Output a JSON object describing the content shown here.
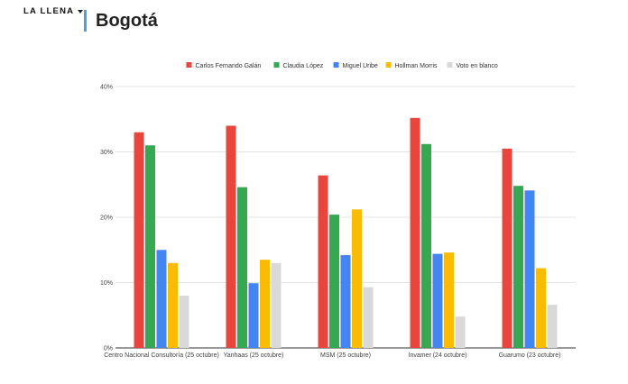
{
  "header": {
    "brand": "LA LLENA",
    "title": "Bogotá"
  },
  "chart_data": {
    "type": "bar",
    "title": "Bogotá",
    "categories": [
      "Centro Nacional Consultoría (25 octubre)",
      "Yanhaas (25 octubre)",
      "MSM (25 octubre)",
      "Invamer (24 octubre)",
      "Guarumo (23 octubre)"
    ],
    "series": [
      {
        "name": "Carlos Fernando Galán",
        "color": "#e8453c",
        "values": [
          33.0,
          34.0,
          26.4,
          35.2,
          30.5
        ]
      },
      {
        "name": "Claudia López",
        "color": "#36a852",
        "values": [
          31.0,
          24.6,
          20.4,
          31.2,
          24.8
        ]
      },
      {
        "name": "Miguel Uribe",
        "color": "#4485f4",
        "values": [
          15.0,
          9.9,
          14.2,
          14.4,
          24.1
        ]
      },
      {
        "name": "Hollman Morris",
        "color": "#fabb05",
        "values": [
          13.0,
          13.5,
          21.2,
          14.6,
          12.2
        ]
      },
      {
        "name": "Voto en blanco",
        "color": "#d9d9d9",
        "values": [
          8.0,
          13.0,
          9.3,
          4.8,
          6.6
        ]
      }
    ],
    "yticks": [
      "0%",
      "10%",
      "20%",
      "30%",
      "40%"
    ],
    "ylim": [
      0,
      40
    ],
    "xlabel": "",
    "ylabel": "",
    "grid": true,
    "legend": "top"
  }
}
